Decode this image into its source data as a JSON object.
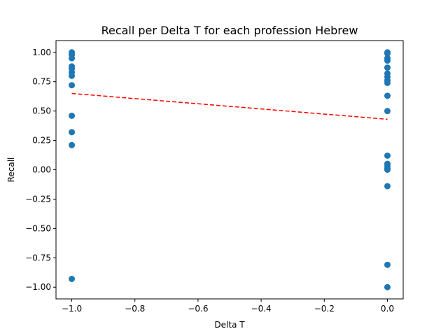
{
  "chart_data": {
    "type": "scatter",
    "title": "Recall per Delta T for each profession Hebrew",
    "xlabel": "Delta T",
    "ylabel": "Recall",
    "xlim": [
      -1.05,
      0.05
    ],
    "ylim": [
      -1.1,
      1.1
    ],
    "xticks": [
      -1.0,
      -0.8,
      -0.6,
      -0.4,
      -0.2,
      0.0
    ],
    "xtick_labels": [
      "−1.0",
      "−0.8",
      "−0.6",
      "−0.4",
      "−0.2",
      "0.0"
    ],
    "yticks": [
      -1.0,
      -0.75,
      -0.5,
      -0.25,
      0.0,
      0.25,
      0.5,
      0.75,
      1.0
    ],
    "ytick_labels": [
      "−1.00",
      "−0.75",
      "−0.50",
      "−0.25",
      "0.00",
      "0.25",
      "0.50",
      "0.75",
      "1.00"
    ],
    "grid": false,
    "point_color": "#1f77b4",
    "trend_color": "#ff0000",
    "points": [
      {
        "x": -1.0,
        "y": 1.0
      },
      {
        "x": -1.0,
        "y": 0.98
      },
      {
        "x": -1.0,
        "y": 0.95
      },
      {
        "x": -1.0,
        "y": 0.88
      },
      {
        "x": -1.0,
        "y": 0.86
      },
      {
        "x": -1.0,
        "y": 0.83
      },
      {
        "x": -1.0,
        "y": 0.8
      },
      {
        "x": -1.0,
        "y": 0.72
      },
      {
        "x": -1.0,
        "y": 0.46
      },
      {
        "x": -1.0,
        "y": 0.32
      },
      {
        "x": -1.0,
        "y": 0.21
      },
      {
        "x": -1.0,
        "y": -0.93
      },
      {
        "x": 0.0,
        "y": 1.0
      },
      {
        "x": 0.0,
        "y": 0.99
      },
      {
        "x": 0.0,
        "y": 0.95
      },
      {
        "x": 0.0,
        "y": 0.93
      },
      {
        "x": 0.0,
        "y": 0.87
      },
      {
        "x": 0.0,
        "y": 0.82
      },
      {
        "x": 0.0,
        "y": 0.79
      },
      {
        "x": 0.0,
        "y": 0.76
      },
      {
        "x": 0.0,
        "y": 0.74
      },
      {
        "x": 0.0,
        "y": 0.63
      },
      {
        "x": 0.0,
        "y": 0.5
      },
      {
        "x": 0.0,
        "y": 0.12
      },
      {
        "x": 0.0,
        "y": 0.05
      },
      {
        "x": 0.0,
        "y": 0.03
      },
      {
        "x": 0.0,
        "y": 0.01
      },
      {
        "x": 0.0,
        "y": 0.0
      },
      {
        "x": 0.0,
        "y": -0.14
      },
      {
        "x": 0.0,
        "y": -0.81
      },
      {
        "x": 0.0,
        "y": -1.0
      }
    ],
    "trend_line": {
      "x": [
        -1.0,
        0.0
      ],
      "y": [
        0.65,
        0.43
      ],
      "style": "dashed"
    }
  }
}
